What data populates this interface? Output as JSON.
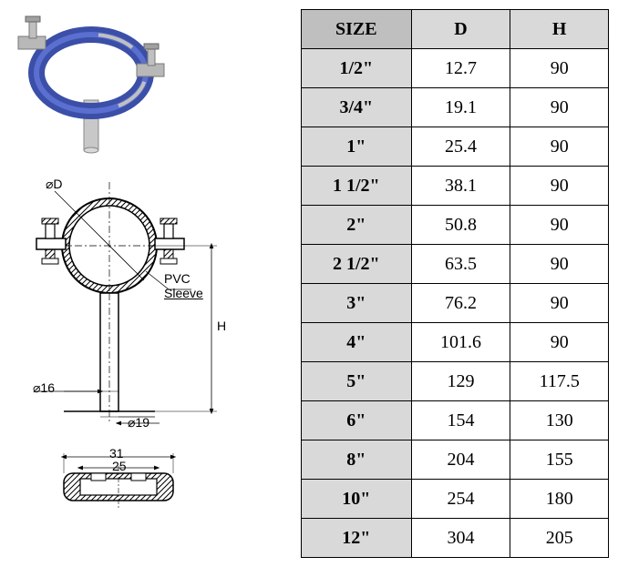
{
  "table": {
    "columns": [
      "SIZE",
      "D",
      "H"
    ],
    "rows": [
      [
        "1/2\"",
        "12.7",
        "90"
      ],
      [
        "3/4\"",
        "19.1",
        "90"
      ],
      [
        "1\"",
        "25.4",
        "90"
      ],
      [
        "1 1/2\"",
        "38.1",
        "90"
      ],
      [
        "2\"",
        "50.8",
        "90"
      ],
      [
        "2 1/2\"",
        "63.5",
        "90"
      ],
      [
        "3\"",
        "76.2",
        "90"
      ],
      [
        "4\"",
        "101.6",
        "90"
      ],
      [
        "5\"",
        "129",
        "117.5"
      ],
      [
        "6\"",
        "154",
        "130"
      ],
      [
        "8\"",
        "204",
        "155"
      ],
      [
        "10\"",
        "254",
        "180"
      ],
      [
        "12\"",
        "304",
        "205"
      ]
    ],
    "header_bg_size": "#bfbfbf",
    "header_bg_other": "#d9d9d9",
    "size_col_bg": "#d9d9d9",
    "cell_bg": "#ffffff",
    "border_color": "#000000",
    "font_size": 20
  },
  "diagram": {
    "labels": {
      "d": "⌀D",
      "pvc": "PVC",
      "sleeve": "Sleeve",
      "h": "H",
      "d16": "⌀16",
      "d19": "⌀19",
      "w31": "31",
      "w25": "25"
    },
    "clamp_blue": "#3b4fa8",
    "clamp_blue_light": "#5a6fd0",
    "steel_gray": "#b0b0b0",
    "steel_dark": "#888888",
    "line_color": "#000000"
  }
}
